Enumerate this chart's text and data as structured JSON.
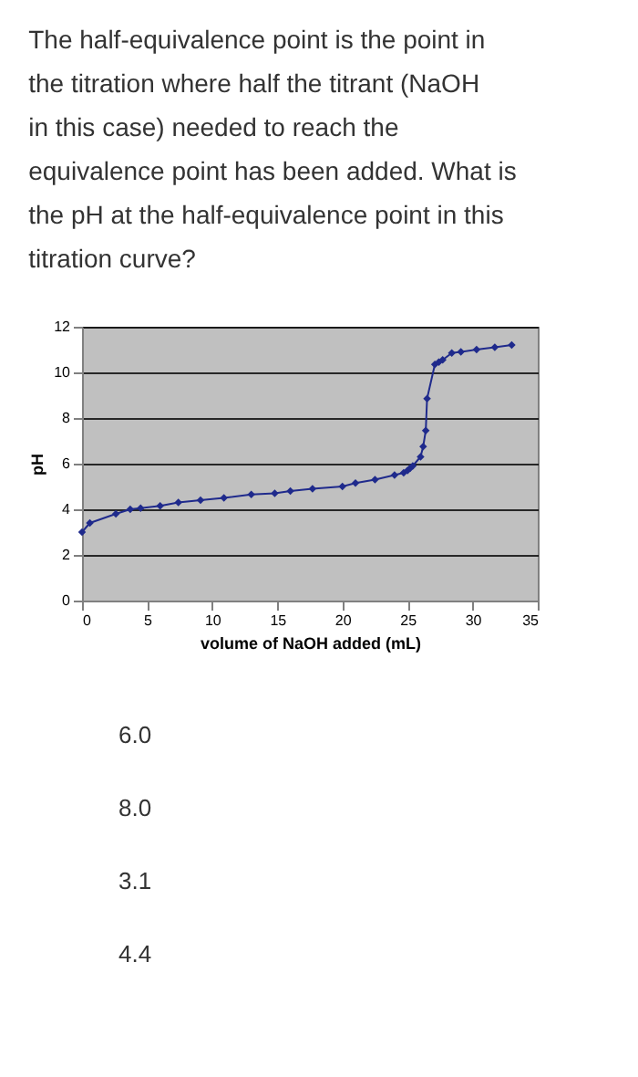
{
  "chart_data": {
    "type": "line",
    "title": "The half-equivalence point is the point in the titration where half the titrant (NaOH in this case) needed to reach the equivalence point has been added.  What is the pH at the half-equivalence point in this titration curve?",
    "xlabel": "volume of NaOH added (mL)",
    "ylabel": "pH",
    "x": [
      0,
      0.6,
      2.6,
      3.7,
      4.5,
      6.0,
      7.4,
      9.1,
      10.9,
      13.0,
      14.8,
      16.0,
      17.7,
      20.0,
      21.0,
      22.5,
      24.0,
      24.7,
      25.0,
      25.2,
      25.4,
      26.0,
      26.2,
      26.4,
      26.5,
      27.1,
      27.4,
      27.7,
      28.4,
      29.1,
      30.3,
      31.7,
      33.0
    ],
    "series": [
      {
        "color": "#1f2a8c",
        "values": [
          3.0,
          3.4,
          3.8,
          4.0,
          4.05,
          4.15,
          4.3,
          4.4,
          4.5,
          4.65,
          4.7,
          4.8,
          4.9,
          5.0,
          5.15,
          5.3,
          5.5,
          5.6,
          5.7,
          5.8,
          5.9,
          6.3,
          6.75,
          7.45,
          8.85,
          10.35,
          10.45,
          10.55,
          10.85,
          10.9,
          11.0,
          11.1,
          11.2
        ]
      }
    ],
    "xlim": [
      0,
      35
    ],
    "xticks": [
      0,
      5,
      10,
      15,
      20,
      25,
      30,
      35
    ],
    "ylim": [
      0,
      12
    ],
    "yticks": [
      0,
      2,
      4,
      6,
      8,
      10,
      12
    ],
    "grid": "y",
    "marker": "diamond",
    "line_style": "solid",
    "annotations": [
      "6.0",
      "8.0",
      "3.1",
      "4.4"
    ]
  }
}
